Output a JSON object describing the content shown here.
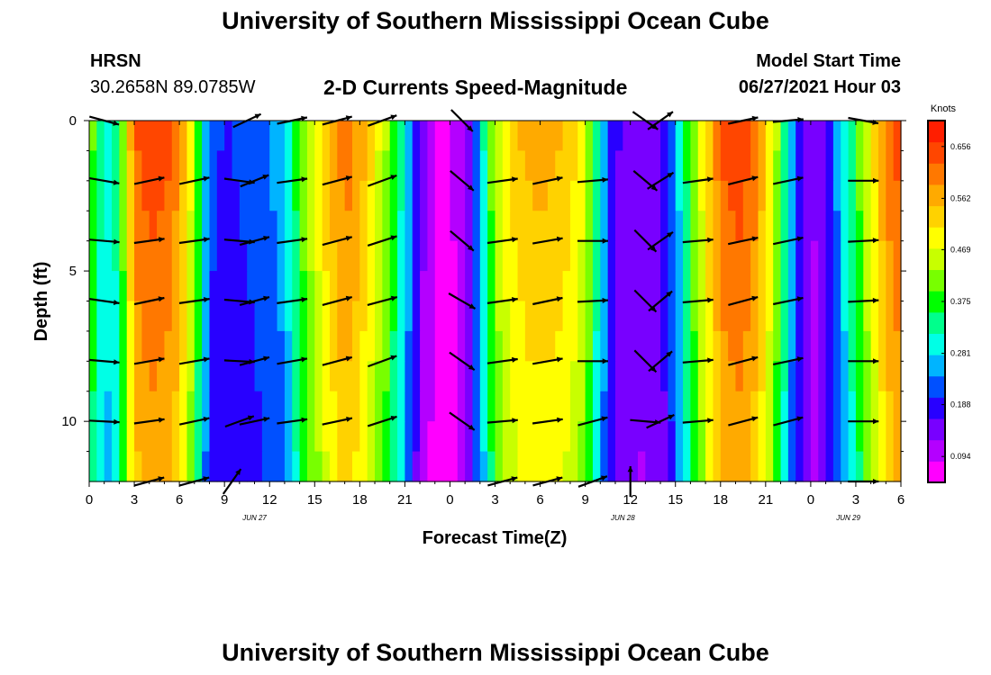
{
  "page": {
    "title_top": "University of Southern Mississippi Ocean Cube",
    "title_bottom": "University of Southern Mississippi Ocean Cube",
    "station": "HRSN",
    "coords": "30.2658N  89.0785W",
    "model_label": "Model Start Time",
    "model_time": "06/27/2021 Hour 03"
  },
  "chart_data": {
    "type": "heatmap",
    "title": "2-D Currents Speed-Magnitude",
    "xlabel": "Forecast Time(Z)",
    "ylabel": "Depth (ft)",
    "x_ticks": [
      "0",
      "3",
      "6",
      "9",
      "12",
      "15",
      "18",
      "21",
      "0",
      "3",
      "6",
      "9",
      "12",
      "15",
      "18",
      "21",
      "0",
      "3",
      "6"
    ],
    "date_labels": [
      {
        "label": "JUN 27",
        "hour": 11
      },
      {
        "label": "JUN 28",
        "hour": 35.5
      },
      {
        "label": "JUN 29",
        "hour": 50.5
      }
    ],
    "x_range_hours": [
      0,
      54
    ],
    "y_ticks": [
      "0",
      "5",
      "10"
    ],
    "y_range_ft": [
      0,
      12
    ],
    "colorbar": {
      "label": "Knots",
      "ticks": [
        "0.656",
        "0.562",
        "0.469",
        "0.375",
        "0.281",
        "0.188",
        "0.094"
      ],
      "min": 0.047,
      "max": 0.703,
      "colors": [
        "#ff00ff",
        "#b400ff",
        "#7800ff",
        "#2800ff",
        "#0050ff",
        "#00b4ff",
        "#00ffe6",
        "#00ff8c",
        "#00ff00",
        "#78ff00",
        "#c8ff00",
        "#ffff00",
        "#ffd200",
        "#ffaa00",
        "#ff7800",
        "#ff4600",
        "#ff1e00"
      ]
    },
    "speed_profile": {
      "hours": [
        0,
        1,
        2,
        3,
        4,
        5,
        6,
        7,
        8,
        9,
        10,
        11,
        12,
        13,
        14,
        15,
        16,
        17,
        18,
        19,
        20,
        21,
        22,
        23,
        24,
        25,
        26,
        27,
        28,
        29,
        30,
        31,
        32,
        33,
        34,
        35,
        36,
        37,
        38,
        39,
        40,
        41,
        42,
        43,
        44,
        45,
        46,
        47,
        48,
        49,
        50,
        51,
        52,
        53,
        54
      ],
      "speeds": [
        0.43,
        0.3,
        0.35,
        0.62,
        0.66,
        0.65,
        0.6,
        0.45,
        0.22,
        0.2,
        0.21,
        0.22,
        0.24,
        0.27,
        0.4,
        0.48,
        0.56,
        0.62,
        0.58,
        0.5,
        0.42,
        0.3,
        0.15,
        0.08,
        0.08,
        0.12,
        0.28,
        0.45,
        0.53,
        0.56,
        0.57,
        0.56,
        0.54,
        0.48,
        0.3,
        0.17,
        0.15,
        0.14,
        0.16,
        0.25,
        0.4,
        0.52,
        0.63,
        0.66,
        0.64,
        0.55,
        0.4,
        0.22,
        0.12,
        0.16,
        0.28,
        0.38,
        0.5,
        0.6,
        0.66
      ]
    },
    "vectors": [
      {
        "hour": 1,
        "depth": 0,
        "dir": 15
      },
      {
        "hour": 10.5,
        "depth": 0,
        "dir": -25
      },
      {
        "hour": 13.5,
        "depth": 0,
        "dir": -12
      },
      {
        "hour": 16.5,
        "depth": 0,
        "dir": -15
      },
      {
        "hour": 19.5,
        "depth": 0,
        "dir": -20
      },
      {
        "hour": 24.8,
        "depth": 0,
        "dir": 45
      },
      {
        "hour": 37,
        "depth": 0,
        "dir": 35
      },
      {
        "hour": 38,
        "depth": 0,
        "dir": -35
      },
      {
        "hour": 43.5,
        "depth": 0,
        "dir": -12
      },
      {
        "hour": 46.5,
        "depth": 0,
        "dir": -5
      },
      {
        "hour": 51.5,
        "depth": 0,
        "dir": 10
      },
      {
        "hour": 1,
        "depth": 2,
        "dir": 10
      },
      {
        "hour": 4,
        "depth": 2,
        "dir": -12
      },
      {
        "hour": 7,
        "depth": 2,
        "dir": -12
      },
      {
        "hour": 10,
        "depth": 2,
        "dir": 8
      },
      {
        "hour": 11,
        "depth": 2,
        "dir": -22
      },
      {
        "hour": 13.5,
        "depth": 2,
        "dir": -8
      },
      {
        "hour": 16.5,
        "depth": 2,
        "dir": -15
      },
      {
        "hour": 19.5,
        "depth": 2,
        "dir": -20
      },
      {
        "hour": 24.8,
        "depth": 2,
        "dir": 40
      },
      {
        "hour": 27.5,
        "depth": 2,
        "dir": -8
      },
      {
        "hour": 30.5,
        "depth": 2,
        "dir": -12
      },
      {
        "hour": 33.5,
        "depth": 2,
        "dir": -5
      },
      {
        "hour": 37,
        "depth": 2,
        "dir": 40
      },
      {
        "hour": 38,
        "depth": 2,
        "dir": -32
      },
      {
        "hour": 40.5,
        "depth": 2,
        "dir": -8
      },
      {
        "hour": 43.5,
        "depth": 2,
        "dir": -14
      },
      {
        "hour": 46.5,
        "depth": 2,
        "dir": -12
      },
      {
        "hour": 51.5,
        "depth": 2,
        "dir": 0
      },
      {
        "hour": 1,
        "depth": 4,
        "dir": 5
      },
      {
        "hour": 4,
        "depth": 4,
        "dir": -8
      },
      {
        "hour": 7,
        "depth": 4,
        "dir": -8
      },
      {
        "hour": 10,
        "depth": 4,
        "dir": 5
      },
      {
        "hour": 11,
        "depth": 4,
        "dir": -15
      },
      {
        "hour": 13.5,
        "depth": 4,
        "dir": -8
      },
      {
        "hour": 16.5,
        "depth": 4,
        "dir": -15
      },
      {
        "hour": 19.5,
        "depth": 4,
        "dir": -18
      },
      {
        "hour": 24.8,
        "depth": 4,
        "dir": 40
      },
      {
        "hour": 27.5,
        "depth": 4,
        "dir": -8
      },
      {
        "hour": 30.5,
        "depth": 4,
        "dir": -10
      },
      {
        "hour": 33.5,
        "depth": 4,
        "dir": 0
      },
      {
        "hour": 37,
        "depth": 4,
        "dir": 45
      },
      {
        "hour": 38,
        "depth": 4,
        "dir": -35
      },
      {
        "hour": 40.5,
        "depth": 4,
        "dir": -5
      },
      {
        "hour": 43.5,
        "depth": 4,
        "dir": -12
      },
      {
        "hour": 46.5,
        "depth": 4,
        "dir": -12
      },
      {
        "hour": 51.5,
        "depth": 4,
        "dir": -3
      },
      {
        "hour": 1,
        "depth": 6,
        "dir": 8
      },
      {
        "hour": 4,
        "depth": 6,
        "dir": -12
      },
      {
        "hour": 7,
        "depth": 6,
        "dir": -8
      },
      {
        "hour": 10,
        "depth": 6,
        "dir": 5
      },
      {
        "hour": 11,
        "depth": 6,
        "dir": -15
      },
      {
        "hour": 13.5,
        "depth": 6,
        "dir": -8
      },
      {
        "hour": 16.5,
        "depth": 6,
        "dir": -15
      },
      {
        "hour": 19.5,
        "depth": 6,
        "dir": -15
      },
      {
        "hour": 24.8,
        "depth": 6,
        "dir": 30
      },
      {
        "hour": 27.5,
        "depth": 6,
        "dir": -8
      },
      {
        "hour": 30.5,
        "depth": 6,
        "dir": -12
      },
      {
        "hour": 33.5,
        "depth": 6,
        "dir": -3
      },
      {
        "hour": 37,
        "depth": 6,
        "dir": 45
      },
      {
        "hour": 38,
        "depth": 6,
        "dir": -40
      },
      {
        "hour": 40.5,
        "depth": 6,
        "dir": -5
      },
      {
        "hour": 43.5,
        "depth": 6,
        "dir": -15
      },
      {
        "hour": 46.5,
        "depth": 6,
        "dir": -12
      },
      {
        "hour": 51.5,
        "depth": 6,
        "dir": -3
      },
      {
        "hour": 1,
        "depth": 8,
        "dir": 5
      },
      {
        "hour": 4,
        "depth": 8,
        "dir": -10
      },
      {
        "hour": 7,
        "depth": 8,
        "dir": -10
      },
      {
        "hour": 10,
        "depth": 8,
        "dir": 3
      },
      {
        "hour": 11,
        "depth": 8,
        "dir": -15
      },
      {
        "hour": 13.5,
        "depth": 8,
        "dir": -10
      },
      {
        "hour": 16.5,
        "depth": 8,
        "dir": -15
      },
      {
        "hour": 19.5,
        "depth": 8,
        "dir": -20
      },
      {
        "hour": 24.8,
        "depth": 8,
        "dir": 35
      },
      {
        "hour": 27.5,
        "depth": 8,
        "dir": -8
      },
      {
        "hour": 30.5,
        "depth": 8,
        "dir": -10
      },
      {
        "hour": 33.5,
        "depth": 8,
        "dir": 0
      },
      {
        "hour": 37,
        "depth": 8,
        "dir": 45
      },
      {
        "hour": 38,
        "depth": 8,
        "dir": -40
      },
      {
        "hour": 40.5,
        "depth": 8,
        "dir": -5
      },
      {
        "hour": 43.5,
        "depth": 8,
        "dir": -15
      },
      {
        "hour": 46.5,
        "depth": 8,
        "dir": -12
      },
      {
        "hour": 51.5,
        "depth": 8,
        "dir": 0
      },
      {
        "hour": 1,
        "depth": 10,
        "dir": 3
      },
      {
        "hour": 4,
        "depth": 10,
        "dir": -8
      },
      {
        "hour": 7,
        "depth": 10,
        "dir": -12
      },
      {
        "hour": 10,
        "depth": 10,
        "dir": -20
      },
      {
        "hour": 11,
        "depth": 10,
        "dir": -12
      },
      {
        "hour": 13.5,
        "depth": 10,
        "dir": -8
      },
      {
        "hour": 16.5,
        "depth": 10,
        "dir": -12
      },
      {
        "hour": 19.5,
        "depth": 10,
        "dir": -18
      },
      {
        "hour": 24.8,
        "depth": 10,
        "dir": 35
      },
      {
        "hour": 27.5,
        "depth": 10,
        "dir": -5
      },
      {
        "hour": 30.5,
        "depth": 10,
        "dir": -8
      },
      {
        "hour": 33.5,
        "depth": 10,
        "dir": -15
      },
      {
        "hour": 37,
        "depth": 10,
        "dir": 5
      },
      {
        "hour": 38,
        "depth": 10,
        "dir": -25
      },
      {
        "hour": 40.5,
        "depth": 10,
        "dir": -5
      },
      {
        "hour": 43.5,
        "depth": 10,
        "dir": -15
      },
      {
        "hour": 46.5,
        "depth": 10,
        "dir": -15
      },
      {
        "hour": 51.5,
        "depth": 10,
        "dir": 0
      },
      {
        "hour": 4,
        "depth": 12,
        "dir": -15
      },
      {
        "hour": 7,
        "depth": 12,
        "dir": -15
      },
      {
        "hour": 9.5,
        "depth": 12,
        "dir": -55
      },
      {
        "hour": 27.5,
        "depth": 12,
        "dir": -15
      },
      {
        "hour": 30.5,
        "depth": 12,
        "dir": -15
      },
      {
        "hour": 33.5,
        "depth": 12,
        "dir": -20
      },
      {
        "hour": 36,
        "depth": 12,
        "dir": -90
      },
      {
        "hour": 51.5,
        "depth": 12,
        "dir": 0
      }
    ]
  }
}
